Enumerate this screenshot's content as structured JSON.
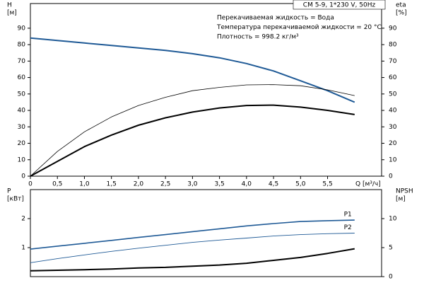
{
  "chart_data": [
    {
      "type": "line",
      "title": "CM 5-9, 1*230 V, 50Hz",
      "annotations": [
        "Перекачиваемая жидкость = Вода",
        "Температура перекачиваемой жидкости = 20 °C",
        "Плотность = 998.2 кг/м³"
      ],
      "xlabel": "Q [м³/ч]",
      "ylabel": [
        "H",
        "[м]"
      ],
      "y2label": [
        "eta",
        "[%]"
      ],
      "x": [
        0,
        0.5,
        1.0,
        1.5,
        2.0,
        2.5,
        3.0,
        3.5,
        4.0,
        4.5,
        5.0,
        5.5,
        6.0
      ],
      "xlim": [
        0,
        6.5
      ],
      "xticks": [
        {
          "value": 0,
          "label": "0"
        },
        {
          "value": 0.5,
          "label": "0,5"
        },
        {
          "value": 1,
          "label": "1,0"
        },
        {
          "value": 1.5,
          "label": "1,5"
        },
        {
          "value": 2,
          "label": "2,0"
        },
        {
          "value": 2.5,
          "label": "2,5"
        },
        {
          "value": 3,
          "label": "3,0"
        },
        {
          "value": 3.5,
          "label": "3,5"
        },
        {
          "value": 4,
          "label": "4,0"
        },
        {
          "value": 4.5,
          "label": "4,5"
        },
        {
          "value": 5,
          "label": "5,0"
        },
        {
          "value": 5.5,
          "label": "5,5"
        }
      ],
      "ylim": [
        0,
        105
      ],
      "yticks": [
        0,
        10,
        20,
        30,
        40,
        50,
        60,
        70,
        80,
        90
      ],
      "y2lim": [
        0,
        105
      ],
      "y2ticks": [
        0,
        10,
        20,
        30,
        40,
        50,
        60,
        70,
        80,
        90
      ],
      "series": [
        {
          "color": "#1f5a96",
          "linewidth": 2,
          "values": [
            84,
            82.5,
            81,
            79.5,
            78,
            76.5,
            74.5,
            72,
            68.5,
            64,
            58,
            52,
            45
          ]
        },
        {
          "color": "#000000",
          "linewidth": 0.8,
          "axis": "y2",
          "values": [
            0,
            15,
            27,
            36,
            43,
            48,
            52,
            54,
            55.5,
            55.7,
            55,
            52.5,
            49
          ]
        },
        {
          "color": "#000000",
          "linewidth": 2,
          "axis": "y2",
          "values": [
            0,
            9,
            18,
            25,
            31,
            35.5,
            39,
            41.5,
            43,
            43.2,
            42,
            40,
            37.5
          ]
        }
      ]
    },
    {
      "type": "line",
      "ylabel": [
        "P",
        "[кВт]"
      ],
      "y2label": [
        "NPSH",
        "[м]"
      ],
      "x": [
        0,
        0.5,
        1.0,
        1.5,
        2.0,
        2.5,
        3.0,
        3.5,
        4.0,
        4.5,
        5.0,
        5.5,
        6.0
      ],
      "xlim": [
        0,
        6.5
      ],
      "ylim": [
        0,
        3
      ],
      "yticks": [
        1,
        2
      ],
      "y2lim": [
        0,
        15
      ],
      "y2ticks": [
        0,
        5,
        10
      ],
      "series": [
        {
          "name": "P1",
          "color": "#1f5a96",
          "linewidth": 1.6,
          "values": [
            0.95,
            1.05,
            1.15,
            1.25,
            1.35,
            1.45,
            1.55,
            1.65,
            1.75,
            1.83,
            1.9,
            1.93,
            1.95
          ]
        },
        {
          "name": "P2",
          "color": "#1f5a96",
          "linewidth": 0.9,
          "values": [
            0.48,
            0.62,
            0.75,
            0.87,
            0.98,
            1.08,
            1.18,
            1.26,
            1.33,
            1.4,
            1.45,
            1.48,
            1.5
          ]
        },
        {
          "color": "#000000",
          "linewidth": 2,
          "axis": "y2",
          "values": [
            1.0,
            1.1,
            1.2,
            1.3,
            1.5,
            1.6,
            1.8,
            2.0,
            2.3,
            2.8,
            3.3,
            4.0,
            4.8
          ]
        }
      ]
    }
  ]
}
